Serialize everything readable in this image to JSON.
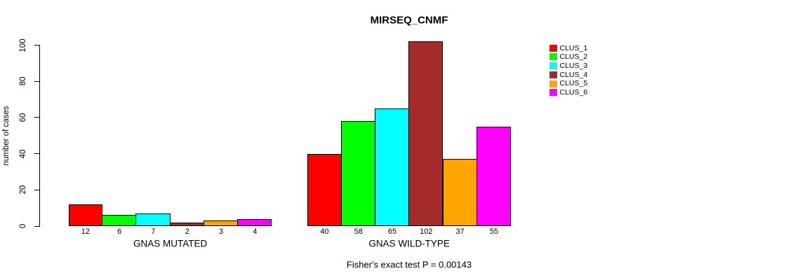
{
  "chart_data": {
    "type": "bar",
    "title": "MIRSEQ_CNMF",
    "xlabel": "",
    "ylabel": "number of cases",
    "ylim": [
      0,
      100
    ],
    "y_ticks": [
      0,
      20,
      40,
      60,
      80,
      100
    ],
    "grid": false,
    "legend_position": "top-right-outside-plot",
    "clusters": [
      {
        "name": "CLUS_1",
        "color": "#FF0000"
      },
      {
        "name": "CLUS_2",
        "color": "#00FF00"
      },
      {
        "name": "CLUS_3",
        "color": "#00FFFF"
      },
      {
        "name": "CLUS_4",
        "color": "#A52A2A"
      },
      {
        "name": "CLUS_5",
        "color": "#FFA500"
      },
      {
        "name": "CLUS_6",
        "color": "#FF00FF"
      }
    ],
    "groups": [
      {
        "label": "GNAS MUTATED",
        "values": [
          12,
          6,
          7,
          2,
          3,
          4
        ]
      },
      {
        "label": "GNAS WILD-TYPE",
        "values": [
          40,
          58,
          65,
          102,
          37,
          55
        ]
      }
    ],
    "annotation": "Fisher's exact test P = 0.00143"
  },
  "colors": {
    "background": "#FFFFFF",
    "text": "#000000",
    "bar_border": "#000000",
    "axis": "#000000"
  }
}
